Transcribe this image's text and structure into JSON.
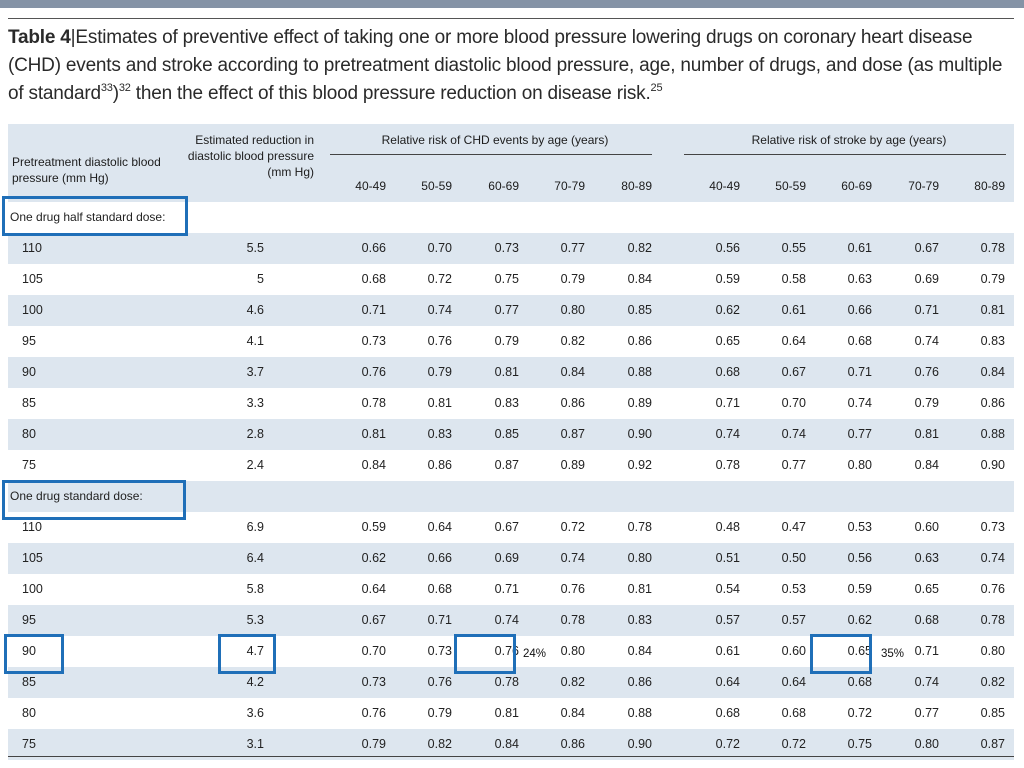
{
  "caption": {
    "label": "Table 4",
    "text": "Estimates of preventive effect of taking one or more blood pressure lowering drugs on coronary heart disease (CHD) events and stroke according to pretreatment diastolic blood pressure, age, number of drugs, and dose (as multiple of standard",
    "sup1": "33",
    "sup2": "32",
    "text2": "then the effect of this blood pressure reduction on disease risk.",
    "sup3": "25"
  },
  "header": {
    "col1": "Pretreatment diastolic blood pressure (mm Hg)",
    "col2": "Estimated reduction in diastolic blood pressure (mm Hg)",
    "chd_group": "Relative risk of CHD events by age (years)",
    "stroke_group": "Relative risk of stroke by age (years)",
    "ages": [
      "40-49",
      "50-59",
      "60-69",
      "70-79",
      "80-89"
    ]
  },
  "sections": [
    {
      "title": "One drug half standard dose:",
      "rows": [
        {
          "bp": "110",
          "red": "5.5",
          "chd": [
            "0.66",
            "0.70",
            "0.73",
            "0.77",
            "0.82"
          ],
          "stroke": [
            "0.56",
            "0.55",
            "0.61",
            "0.67",
            "0.78"
          ]
        },
        {
          "bp": "105",
          "red": "5",
          "chd": [
            "0.68",
            "0.72",
            "0.75",
            "0.79",
            "0.84"
          ],
          "stroke": [
            "0.59",
            "0.58",
            "0.63",
            "0.69",
            "0.79"
          ]
        },
        {
          "bp": "100",
          "red": "4.6",
          "chd": [
            "0.71",
            "0.74",
            "0.77",
            "0.80",
            "0.85"
          ],
          "stroke": [
            "0.62",
            "0.61",
            "0.66",
            "0.71",
            "0.81"
          ]
        },
        {
          "bp": "95",
          "red": "4.1",
          "chd": [
            "0.73",
            "0.76",
            "0.79",
            "0.82",
            "0.86"
          ],
          "stroke": [
            "0.65",
            "0.64",
            "0.68",
            "0.74",
            "0.83"
          ]
        },
        {
          "bp": "90",
          "red": "3.7",
          "chd": [
            "0.76",
            "0.79",
            "0.81",
            "0.84",
            "0.88"
          ],
          "stroke": [
            "0.68",
            "0.67",
            "0.71",
            "0.76",
            "0.84"
          ]
        },
        {
          "bp": "85",
          "red": "3.3",
          "chd": [
            "0.78",
            "0.81",
            "0.83",
            "0.86",
            "0.89"
          ],
          "stroke": [
            "0.71",
            "0.70",
            "0.74",
            "0.79",
            "0.86"
          ]
        },
        {
          "bp": "80",
          "red": "2.8",
          "chd": [
            "0.81",
            "0.83",
            "0.85",
            "0.87",
            "0.90"
          ],
          "stroke": [
            "0.74",
            "0.74",
            "0.77",
            "0.81",
            "0.88"
          ]
        },
        {
          "bp": "75",
          "red": "2.4",
          "chd": [
            "0.84",
            "0.86",
            "0.87",
            "0.89",
            "0.92"
          ],
          "stroke": [
            "0.78",
            "0.77",
            "0.80",
            "0.84",
            "0.90"
          ]
        }
      ]
    },
    {
      "title": "One drug standard dose:",
      "rows": [
        {
          "bp": "110",
          "red": "6.9",
          "chd": [
            "0.59",
            "0.64",
            "0.67",
            "0.72",
            "0.78"
          ],
          "stroke": [
            "0.48",
            "0.47",
            "0.53",
            "0.60",
            "0.73"
          ]
        },
        {
          "bp": "105",
          "red": "6.4",
          "chd": [
            "0.62",
            "0.66",
            "0.69",
            "0.74",
            "0.80"
          ],
          "stroke": [
            "0.51",
            "0.50",
            "0.56",
            "0.63",
            "0.74"
          ]
        },
        {
          "bp": "100",
          "red": "5.8",
          "chd": [
            "0.64",
            "0.68",
            "0.71",
            "0.76",
            "0.81"
          ],
          "stroke": [
            "0.54",
            "0.53",
            "0.59",
            "0.65",
            "0.76"
          ]
        },
        {
          "bp": "95",
          "red": "5.3",
          "chd": [
            "0.67",
            "0.71",
            "0.74",
            "0.78",
            "0.83"
          ],
          "stroke": [
            "0.57",
            "0.57",
            "0.62",
            "0.68",
            "0.78"
          ]
        },
        {
          "bp": "90",
          "red": "4.7",
          "chd": [
            "0.70",
            "0.73",
            "0.76",
            "0.80",
            "0.84"
          ],
          "stroke": [
            "0.61",
            "0.60",
            "0.65",
            "0.71",
            "0.80"
          ]
        },
        {
          "bp": "85",
          "red": "4.2",
          "chd": [
            "0.73",
            "0.76",
            "0.78",
            "0.82",
            "0.86"
          ],
          "stroke": [
            "0.64",
            "0.64",
            "0.68",
            "0.74",
            "0.82"
          ]
        },
        {
          "bp": "80",
          "red": "3.6",
          "chd": [
            "0.76",
            "0.79",
            "0.81",
            "0.84",
            "0.88"
          ],
          "stroke": [
            "0.68",
            "0.68",
            "0.72",
            "0.77",
            "0.85"
          ]
        },
        {
          "bp": "75",
          "red": "3.1",
          "chd": [
            "0.79",
            "0.82",
            "0.84",
            "0.86",
            "0.90"
          ],
          "stroke": [
            "0.72",
            "0.72",
            "0.75",
            "0.80",
            "0.87"
          ]
        }
      ]
    }
  ],
  "annotations": {
    "chd_note": "24%",
    "stroke_note": "35%"
  },
  "colors": {
    "header_band": "#dde6ef",
    "highlight_box": "#1f6fb8",
    "top_bar": "#8593a6"
  }
}
